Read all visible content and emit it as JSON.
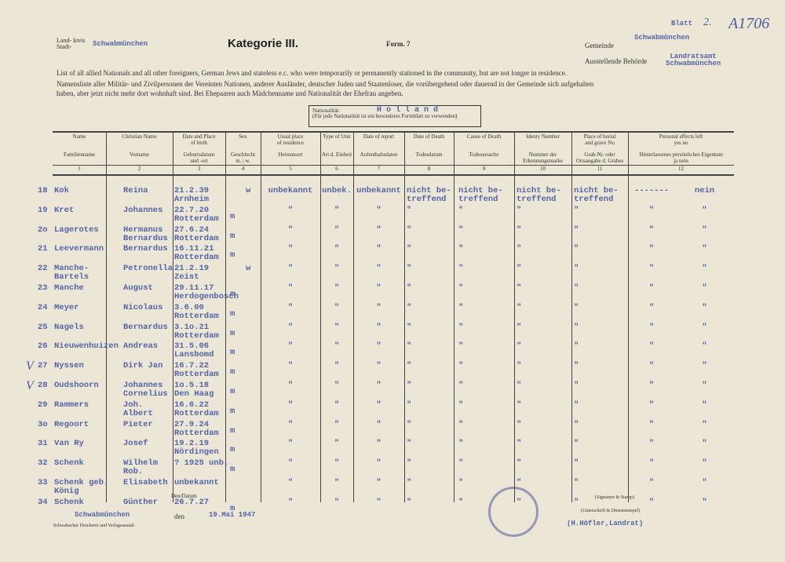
{
  "header": {
    "kreis_label": "Land- kreis\nStadt-",
    "kreis": "Schwabmünchen",
    "title": "Kategorie III.",
    "form": "Form. 7",
    "gemeinde_label": "Gemeinde",
    "gemeinde": "Schwabmünchen",
    "behoerde_label": "Ausstellende Behörde",
    "behoerde": "Landratsamt\nSchwabmünchen",
    "blatt_label": "Blatt",
    "blatt": "2.",
    "file_no": "A1706",
    "intro_en": "List of all allied Nationals and all other foreigners, German Jews and stateless e.c. who were temporarily or permanently stationed in the community, but are not longer in residence.",
    "intro_de": "Namensliste aller Militär- und Zivilpersonen der Vereinten Nationen, anderer Ausländer, deutscher Juden und Staatenloser, die vorübergehend oder dauernd in der Gemeinde sich aufgehalten haben, aber jetzt nicht mehr dort wohnhaft sind. Bei Ehepaaren auch Mädchenname und Nationalität der Ehefrau angeben.",
    "nationality_label": "Nationalität:\n(Für jede Nationalität ist ein besonderes Formblatt zu verwenden)",
    "nationality": "H o l l a n d"
  },
  "table": {
    "columns": [
      {
        "en": "Name",
        "de": "Familienname",
        "no": "1"
      },
      {
        "en": "Christian Name",
        "de": "Vorname",
        "no": "2"
      },
      {
        "en": "Date and Place\nof birth",
        "de": "Geburtsdatum\nund -ort",
        "no": "3"
      },
      {
        "en": "Sex",
        "de": "Geschlecht\nm. | w.",
        "no": "4"
      },
      {
        "en": "Usual place\nof residence",
        "de": "Heimatsort",
        "no": "5"
      },
      {
        "en": "Type of Unit",
        "de": "Art d. Einheit",
        "no": "6"
      },
      {
        "en": "Date of report",
        "de": "Aufenthaltsdaten",
        "no": "7"
      },
      {
        "en": "Date of Death",
        "de": "Todesdatum",
        "no": "8"
      },
      {
        "en": "Cause of Death",
        "de": "Todesursache",
        "no": "9"
      },
      {
        "en": "Identy Number",
        "de": "Nummer der\nErkennungsmarke",
        "no": "10"
      },
      {
        "en": "Place of burial\nand grave No",
        "de": "Grab-Nr. oder\nOrtsangabe d. Grabes",
        "no": "11"
      },
      {
        "en": "Personal effects left\nyes          no",
        "de": "Hinterlassenes persönliches Eigentum\nja          nein",
        "no": "12"
      }
    ],
    "rows": [
      [
        "18",
        "Kok",
        "Reina",
        "21.2.39\nArnheim",
        "w",
        "unbekannt",
        "unbek.",
        "unbekannt",
        "nicht be-\ntreffend",
        "nicht be-\ntreffend",
        "nicht be-\ntreffend",
        "nicht be-\ntreffend",
        "-------",
        "nein"
      ],
      [
        "19",
        "Kret",
        "Johannes",
        "22.7.20\nRotterdam",
        "m",
        "\"",
        "\"",
        "\"",
        "\"",
        "\"",
        "\"",
        "\"",
        "\"",
        "\""
      ],
      [
        "2o",
        "Lagerotes",
        "Hermanus\nBernardus",
        "27.6.24\nRotterdam",
        "m",
        "\"",
        "\"",
        "\"",
        "\"",
        "\"",
        "\"",
        "\"",
        "\"",
        "\""
      ],
      [
        "21",
        "Leevermann",
        "Bernardus",
        "16.11.21\nRotterdam",
        "m",
        "\"",
        "\"",
        "\"",
        "\"",
        "\"",
        "\"",
        "\"",
        "\"",
        "\""
      ],
      [
        "22",
        "Manche-Bartels",
        "Petronella",
        "21.2.19\nZeist",
        "w",
        "\"",
        "\"",
        "\"",
        "\"",
        "\"",
        "\"",
        "\"",
        "\"",
        "\""
      ],
      [
        "23",
        "Manche",
        "August",
        "29.11.17\nHerdogenbosch",
        "m",
        "\"",
        "\"",
        "\"",
        "\"",
        "\"",
        "\"",
        "\"",
        "\"",
        "\""
      ],
      [
        "24",
        "Meyer",
        "Nicolaus",
        "3.6.00\nRotterdam",
        "m",
        "\"",
        "\"",
        "\"",
        "\"",
        "\"",
        "\"",
        "\"",
        "\"",
        "\""
      ],
      [
        "25",
        "Nagels",
        "Bernardus",
        "3.1o.21\nRotterdam",
        "m",
        "\"",
        "\"",
        "\"",
        "\"",
        "\"",
        "\"",
        "\"",
        "\"",
        "\""
      ],
      [
        "26",
        "Nieuwenhuizen",
        "Andreas",
        "31.5.06\nLansbomd",
        "m",
        "\"",
        "\"",
        "\"",
        "\"",
        "\"",
        "\"",
        "\"",
        "\"",
        "\""
      ],
      [
        "27",
        "Nyssen",
        "Dirk Jan",
        "16.7.22\nRotterdam",
        "m",
        "\"",
        "\"",
        "\"",
        "\"",
        "\"",
        "\"",
        "\"",
        "\"",
        "\""
      ],
      [
        "28",
        "Oudshoorn",
        "Johannes\nCornelius",
        "1o.5.18\nDen Haag",
        "m",
        "\"",
        "\"",
        "\"",
        "\"",
        "\"",
        "\"",
        "\"",
        "\"",
        "\""
      ],
      [
        "29",
        "Rammers",
        "Joh. Albert",
        "16.6.22\nRotterdam",
        "m",
        "\"",
        "\"",
        "\"",
        "\"",
        "\"",
        "\"",
        "\"",
        "\"",
        "\""
      ],
      [
        "3o",
        "Regoort",
        "Pieter",
        "27.9.24\nRotterdam",
        "m",
        "\"",
        "\"",
        "\"",
        "\"",
        "\"",
        "\"",
        "\"",
        "\"",
        "\""
      ],
      [
        "31",
        "Van Ry",
        "Josef",
        "19.2.19\nNördingen",
        "m",
        "\"",
        "\"",
        "\"",
        "\"",
        "\"",
        "\"",
        "\"",
        "\"",
        "\""
      ],
      [
        "32",
        "Schenk",
        "Wilhelm\nRob.",
        "? 1925 unb.",
        "m",
        "\"",
        "\"",
        "\"",
        "\"",
        "\"",
        "\"",
        "\"",
        "\"",
        "\""
      ],
      [
        "33",
        "Schenk geb.\nKönig",
        "Elisabeth",
        "unbekannt",
        null,
        "\"",
        "\"",
        "\"",
        "\"",
        "\"",
        "\"",
        "\"",
        "\"",
        "\""
      ],
      [
        "34",
        "Schenk",
        "Günther",
        "26.7.27",
        "m",
        "\"",
        "\"",
        "\"",
        "\"",
        "\"",
        "\"",
        "\"",
        "\"",
        "\""
      ]
    ],
    "checks": [
      {
        "row": 9,
        "mark": "V"
      },
      {
        "row": 10,
        "mark": "V"
      }
    ]
  },
  "footer": {
    "date_label": "Den/Datum",
    "place": "Schwabmünchen",
    "den": "den",
    "date": "19.Mai 1947",
    "signature_label": "(Signature & Stamp)",
    "signature_label_de": "(Unterschrift & Dienststempel)",
    "signer": "(H.Höfler,Landrat)",
    "printer": "Schwabacher Druckerei und Verlagsanstalt"
  }
}
